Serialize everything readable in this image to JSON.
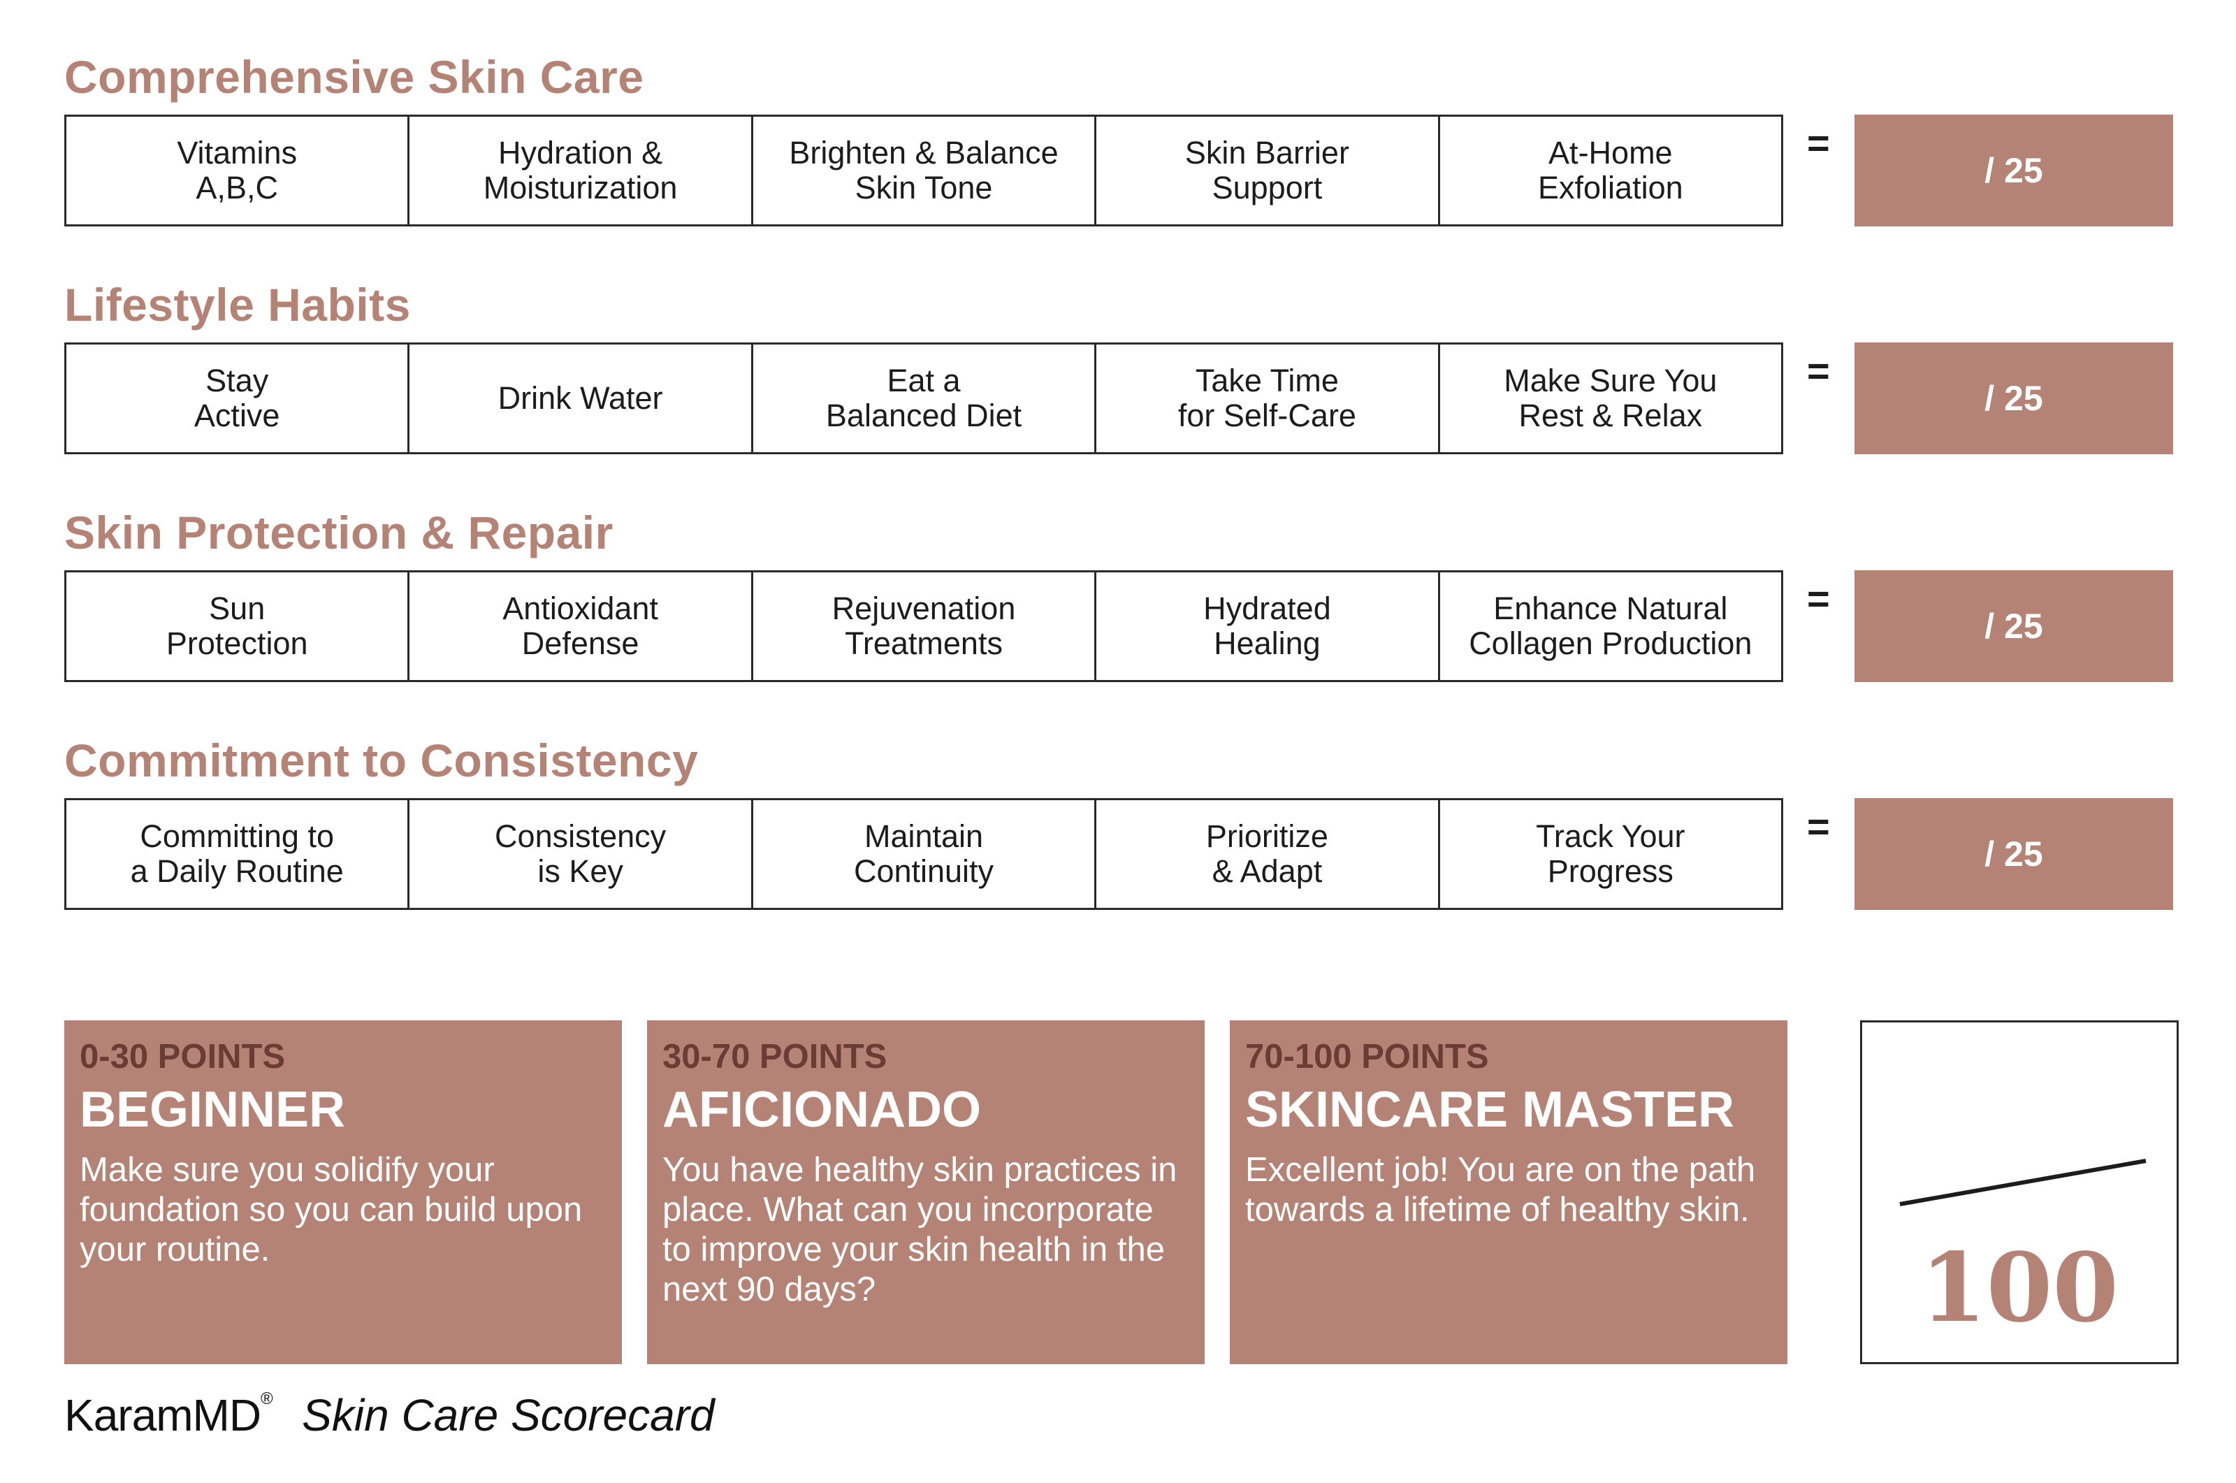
{
  "colors": {
    "accent": "#b58376",
    "points_text": "#6a3c33"
  },
  "sections": [
    {
      "title": "Comprehensive Skin Care",
      "items": [
        "Vitamins\nA,B,C",
        "Hydration &\nMoisturization",
        "Brighten & Balance\nSkin Tone",
        "Skin Barrier\nSupport",
        "At-Home\nExfoliation"
      ],
      "equals": "=",
      "score": "/ 25"
    },
    {
      "title": "Lifestyle Habits",
      "items": [
        "Stay\nActive",
        "Drink Water",
        "Eat a\nBalanced Diet",
        "Take Time\nfor Self-Care",
        "Make Sure You\nRest & Relax"
      ],
      "equals": "=",
      "score": "/ 25"
    },
    {
      "title": "Skin Protection & Repair",
      "items": [
        "Sun\nProtection",
        "Antioxidant\nDefense",
        "Rejuvenation\nTreatments",
        "Hydrated\nHealing",
        "Enhance Natural\nCollagen Production"
      ],
      "equals": "=",
      "score": "/ 25"
    },
    {
      "title": "Commitment to Consistency",
      "items": [
        "Committing to\na Daily Routine",
        "Consistency\nis Key",
        "Maintain\nContinuity",
        "Prioritize\n& Adapt",
        "Track Your\nProgress"
      ],
      "equals": "=",
      "score": "/ 25"
    }
  ],
  "levels": [
    {
      "points": "0-30 POINTS",
      "name": "BEGINNER",
      "description": "Make sure you solidify your foundation so you can build upon your routine."
    },
    {
      "points": "30-70 POINTS",
      "name": "AFICIONADO",
      "description": "You have healthy skin practices in place. What can you incorporate to improve your skin health in the next 90 days?"
    },
    {
      "points": "70-100 POINTS",
      "name": "SKINCARE MASTER",
      "description": "Excellent job! You are on the path towards a lifetime of healthy skin."
    }
  ],
  "total": {
    "value": "100"
  },
  "footer": {
    "brand": "KaramMD",
    "brand_mark": "®",
    "title": "Skin Care Scorecard"
  }
}
